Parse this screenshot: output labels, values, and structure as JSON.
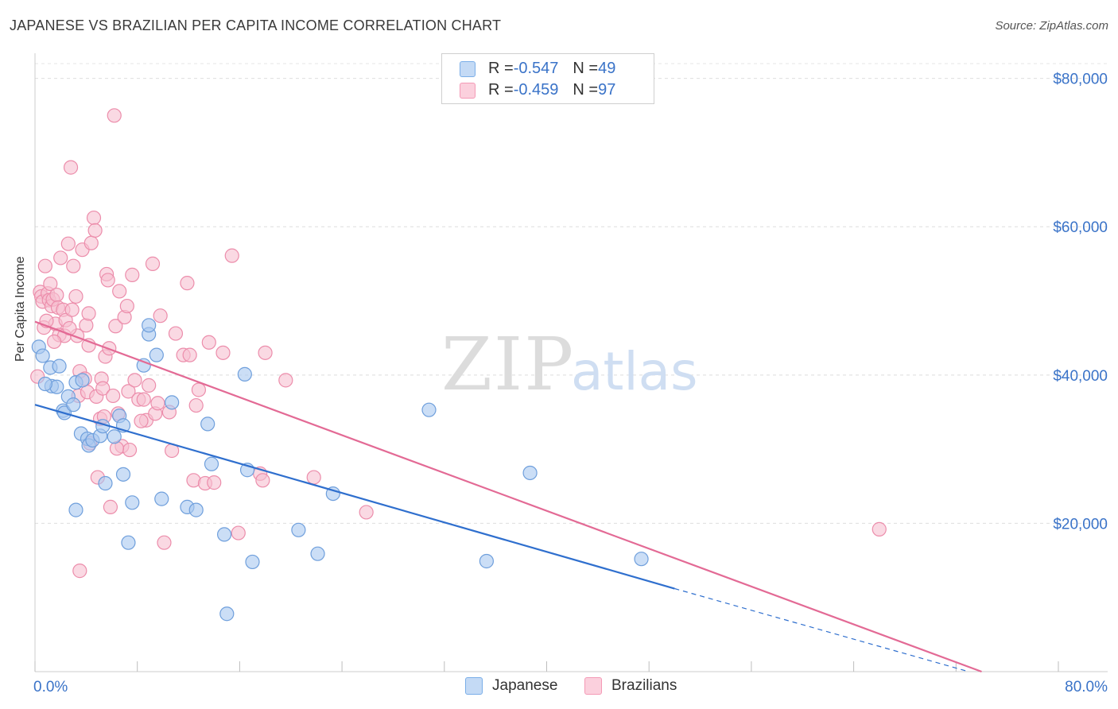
{
  "header": {
    "title": "JAPANESE VS BRAZILIAN PER CAPITA INCOME CORRELATION CHART",
    "source": "Source: ZipAtlas.com"
  },
  "watermark": {
    "zip": "ZIP",
    "atlas": "atlas"
  },
  "legend": {
    "rows": [
      {
        "r_label": "R = ",
        "r_value": "-0.547",
        "n_label": "N = ",
        "n_value": "49",
        "color": "#7aaee8"
      },
      {
        "r_label": "R = ",
        "r_value": "-0.459",
        "n_label": "N = ",
        "n_value": "97",
        "color": "#f49ab6"
      }
    ]
  },
  "bottom_legend": {
    "japanese": "Japanese",
    "brazilians": "Brazilians"
  },
  "colors": {
    "japanese_fill": "#a9c8f0",
    "japanese_stroke": "#6f9fdc",
    "japanese_line": "#2f6fce",
    "brazilian_fill": "#f7bfd0",
    "brazilian_stroke": "#ec8dab",
    "brazilian_line": "#e36a95",
    "axis_text": "#3a73c8"
  },
  "chart_data": {
    "type": "scatter",
    "title": "JAPANESE VS BRAZILIAN PER CAPITA INCOME CORRELATION CHART",
    "xlabel": "",
    "ylabel": "Per Capita Income",
    "xlim": [
      0,
      80
    ],
    "ylim": [
      0,
      82000
    ],
    "x_tick_labels": [
      "0.0%",
      "80.0%"
    ],
    "y_ticks": [
      20000,
      40000,
      60000,
      80000
    ],
    "y_tick_labels": [
      "$20,000",
      "$40,000",
      "$60,000",
      "$80,000"
    ],
    "grid": true,
    "legend_position": "top-center",
    "series": [
      {
        "name": "Japanese",
        "r": -0.547,
        "n": 49,
        "trend": {
          "x0": 0,
          "y0": 36000,
          "x1": 50,
          "y1": 11200,
          "dashed_to_x": 73,
          "dashed_to_y": 0
        },
        "points": [
          [
            0.3,
            43800
          ],
          [
            0.6,
            42600
          ],
          [
            1.2,
            41000
          ],
          [
            1.3,
            38500
          ],
          [
            1.7,
            38400
          ],
          [
            2.2,
            35200
          ],
          [
            2.3,
            34900
          ],
          [
            2.6,
            37100
          ],
          [
            3.0,
            36000
          ],
          [
            3.2,
            39000
          ],
          [
            3.6,
            32100
          ],
          [
            3.7,
            39300
          ],
          [
            4.1,
            31400
          ],
          [
            4.2,
            30500
          ],
          [
            4.5,
            31200
          ],
          [
            5.1,
            31800
          ],
          [
            5.3,
            33100
          ],
          [
            5.5,
            25400
          ],
          [
            6.2,
            31700
          ],
          [
            6.6,
            34500
          ],
          [
            6.9,
            26600
          ],
          [
            6.9,
            33200
          ],
          [
            7.3,
            17400
          ],
          [
            7.6,
            22800
          ],
          [
            8.5,
            41300
          ],
          [
            8.9,
            45500
          ],
          [
            8.9,
            46700
          ],
          [
            9.5,
            42700
          ],
          [
            9.9,
            23300
          ],
          [
            10.7,
            36300
          ],
          [
            11.9,
            22200
          ],
          [
            12.6,
            21800
          ],
          [
            13.5,
            33400
          ],
          [
            13.8,
            28000
          ],
          [
            14.8,
            18500
          ],
          [
            15.0,
            7800
          ],
          [
            16.4,
            40100
          ],
          [
            16.6,
            27200
          ],
          [
            17.0,
            14800
          ],
          [
            20.6,
            19100
          ],
          [
            22.1,
            15900
          ],
          [
            23.3,
            24000
          ],
          [
            30.8,
            35300
          ],
          [
            35.3,
            14900
          ],
          [
            38.7,
            26800
          ],
          [
            47.4,
            15200
          ],
          [
            3.2,
            21800
          ],
          [
            0.8,
            38800
          ],
          [
            1.9,
            41200
          ]
        ]
      },
      {
        "name": "Brazilians",
        "r": -0.459,
        "n": 97,
        "trend": {
          "x0": 0,
          "y0": 47200,
          "x1": 74,
          "y1": 0
        },
        "points": [
          [
            0.2,
            39800
          ],
          [
            0.4,
            51200
          ],
          [
            0.5,
            50600
          ],
          [
            0.6,
            49900
          ],
          [
            0.7,
            46400
          ],
          [
            0.8,
            54700
          ],
          [
            1.0,
            51000
          ],
          [
            1.1,
            50100
          ],
          [
            1.2,
            52300
          ],
          [
            1.3,
            49300
          ],
          [
            1.4,
            50200
          ],
          [
            1.6,
            46900
          ],
          [
            1.7,
            50800
          ],
          [
            1.8,
            49100
          ],
          [
            1.9,
            45400
          ],
          [
            2.0,
            55800
          ],
          [
            2.2,
            48800
          ],
          [
            2.3,
            45300
          ],
          [
            2.4,
            47400
          ],
          [
            2.6,
            57700
          ],
          [
            2.8,
            68000
          ],
          [
            2.9,
            48800
          ],
          [
            3.0,
            54700
          ],
          [
            3.2,
            50600
          ],
          [
            3.3,
            45300
          ],
          [
            3.4,
            37200
          ],
          [
            3.5,
            40500
          ],
          [
            3.5,
            13600
          ],
          [
            3.7,
            56900
          ],
          [
            3.9,
            39500
          ],
          [
            4.0,
            46700
          ],
          [
            4.1,
            37700
          ],
          [
            4.2,
            48300
          ],
          [
            4.2,
            44000
          ],
          [
            4.4,
            57800
          ],
          [
            4.6,
            61200
          ],
          [
            4.7,
            59500
          ],
          [
            4.8,
            37100
          ],
          [
            4.9,
            26200
          ],
          [
            5.1,
            34100
          ],
          [
            5.2,
            39500
          ],
          [
            5.3,
            38200
          ],
          [
            5.5,
            42500
          ],
          [
            5.6,
            53600
          ],
          [
            5.7,
            52800
          ],
          [
            5.8,
            43600
          ],
          [
            5.9,
            22200
          ],
          [
            6.1,
            37200
          ],
          [
            6.2,
            75000
          ],
          [
            6.3,
            46600
          ],
          [
            6.5,
            34800
          ],
          [
            6.6,
            51300
          ],
          [
            6.8,
            30400
          ],
          [
            7.0,
            47800
          ],
          [
            7.2,
            49300
          ],
          [
            7.3,
            37800
          ],
          [
            7.4,
            29900
          ],
          [
            7.6,
            53500
          ],
          [
            7.8,
            39300
          ],
          [
            8.1,
            36700
          ],
          [
            8.5,
            36700
          ],
          [
            8.7,
            33900
          ],
          [
            8.9,
            38600
          ],
          [
            9.2,
            55000
          ],
          [
            9.4,
            34800
          ],
          [
            9.8,
            48000
          ],
          [
            10.1,
            17400
          ],
          [
            10.5,
            35000
          ],
          [
            10.7,
            29800
          ],
          [
            11.0,
            45600
          ],
          [
            11.6,
            42700
          ],
          [
            11.9,
            52400
          ],
          [
            12.1,
            42700
          ],
          [
            12.4,
            25800
          ],
          [
            12.6,
            35900
          ],
          [
            13.3,
            25400
          ],
          [
            13.6,
            44400
          ],
          [
            14.0,
            25500
          ],
          [
            14.7,
            43000
          ],
          [
            15.4,
            56100
          ],
          [
            15.9,
            18700
          ],
          [
            17.6,
            26700
          ],
          [
            17.8,
            25800
          ],
          [
            18.0,
            43000
          ],
          [
            19.6,
            39300
          ],
          [
            21.8,
            26200
          ],
          [
            25.9,
            21500
          ],
          [
            66.0,
            19200
          ],
          [
            0.9,
            47300
          ],
          [
            1.5,
            44500
          ],
          [
            2.7,
            46300
          ],
          [
            4.3,
            30800
          ],
          [
            5.4,
            34400
          ],
          [
            6.4,
            30100
          ],
          [
            8.3,
            33800
          ],
          [
            9.6,
            36200
          ],
          [
            12.8,
            38000
          ]
        ]
      }
    ]
  }
}
